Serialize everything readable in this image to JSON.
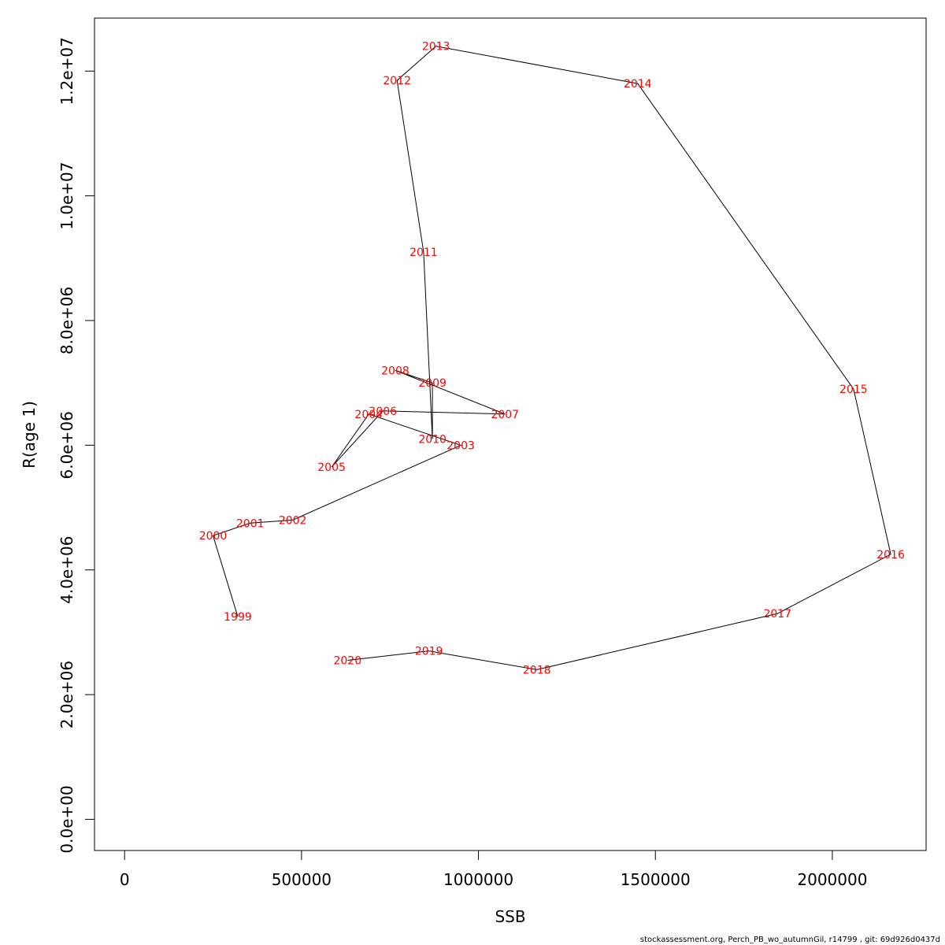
{
  "chart_data": {
    "type": "line",
    "xlabel": "SSB",
    "ylabel": "R(age 1)",
    "xlim": [
      -85000,
      2265000
    ],
    "ylim": [
      -500000,
      12850000
    ],
    "x_ticks": [
      0,
      500000,
      1000000,
      1500000,
      2000000
    ],
    "x_tick_labels": [
      "0",
      "500000",
      "1000000",
      "1500000",
      "2000000"
    ],
    "y_ticks": [
      0,
      2000000,
      4000000,
      6000000,
      8000000,
      10000000,
      12000000
    ],
    "y_tick_labels": [
      "0.0e+00",
      "2.0e+06",
      "4.0e+06",
      "6.0e+06",
      "8.0e+06",
      "1.0e+07",
      "1.2e+07"
    ],
    "label_color": "#ff0000",
    "line_color": "#000000",
    "points": [
      {
        "label": "1999",
        "x": 320000,
        "y": 3250000
      },
      {
        "label": "2000",
        "x": 250000,
        "y": 4550000
      },
      {
        "label": "2001",
        "x": 355000,
        "y": 4750000
      },
      {
        "label": "2002",
        "x": 475000,
        "y": 4800000
      },
      {
        "label": "2003",
        "x": 950000,
        "y": 6000000
      },
      {
        "label": "2004",
        "x": 690000,
        "y": 6500000
      },
      {
        "label": "2005",
        "x": 585000,
        "y": 5650000
      },
      {
        "label": "2006",
        "x": 730000,
        "y": 6550000
      },
      {
        "label": "2007",
        "x": 1075000,
        "y": 6500000
      },
      {
        "label": "2008",
        "x": 765000,
        "y": 7200000
      },
      {
        "label": "2009",
        "x": 870000,
        "y": 7000000
      },
      {
        "label": "2010",
        "x": 870000,
        "y": 6100000
      },
      {
        "label": "2011",
        "x": 845000,
        "y": 9100000
      },
      {
        "label": "2012",
        "x": 770000,
        "y": 11850000
      },
      {
        "label": "2013",
        "x": 880000,
        "y": 12400000
      },
      {
        "label": "2014",
        "x": 1450000,
        "y": 11800000
      },
      {
        "label": "2015",
        "x": 2060000,
        "y": 6900000
      },
      {
        "label": "2016",
        "x": 2165000,
        "y": 4250000
      },
      {
        "label": "2017",
        "x": 1845000,
        "y": 3300000
      },
      {
        "label": "2018",
        "x": 1165000,
        "y": 2400000
      },
      {
        "label": "2019",
        "x": 860000,
        "y": 2700000
      },
      {
        "label": "2020",
        "x": 630000,
        "y": 2550000
      }
    ]
  },
  "footer": "stockassessment.org, Perch_PB_wo_autumnGil, r14799 , git: 69d926d0437d"
}
